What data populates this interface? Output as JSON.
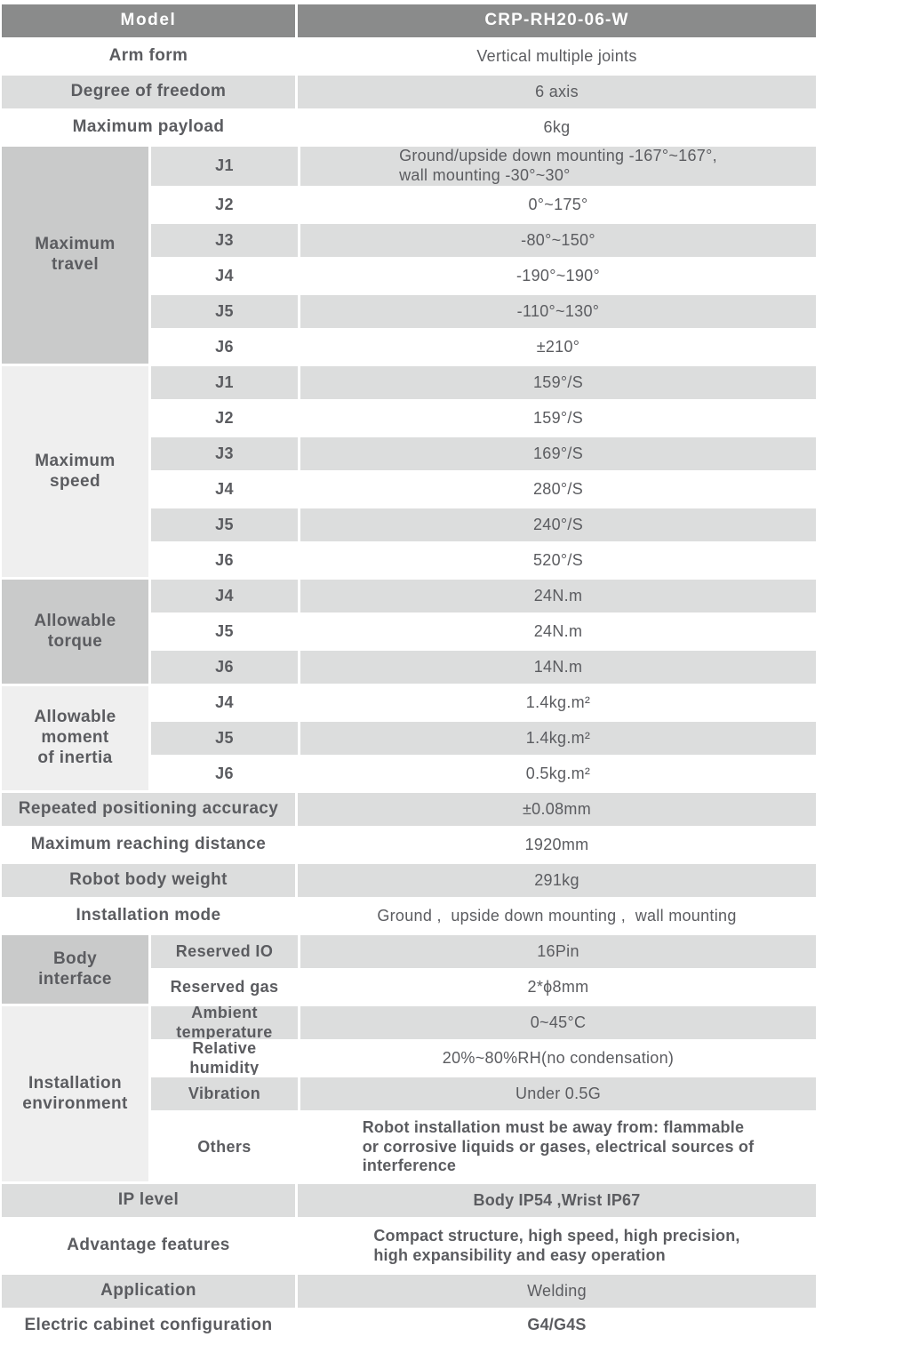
{
  "colors": {
    "header_bg": "#8a8b8b",
    "header_text": "#ffffff",
    "row_gray": "#dcdddd",
    "group_dark": "#c9caca",
    "group_light": "#efefef",
    "text": "#5b5c60"
  },
  "sections": [
    {
      "type": "header",
      "label": "Model",
      "value": "CRP-RH20-06-W"
    },
    {
      "type": "row",
      "shade": "white",
      "label": "Arm form",
      "value": "Vertical multiple joints"
    },
    {
      "type": "row",
      "shade": "gray",
      "label": "Degree of freedom",
      "value": "6 axis"
    },
    {
      "type": "row",
      "shade": "white",
      "label": "Maximum payload",
      "value": "6kg"
    },
    {
      "type": "group",
      "shade": "dark",
      "label": "Maximum\ntravel",
      "rows": [
        {
          "sub": "J1",
          "shade": "gray",
          "align": "left",
          "value": "Ground/upside down mounting -167°~167°,\nwall mounting -30°~30°"
        },
        {
          "sub": "J2",
          "shade": "white",
          "value": "0°~175°"
        },
        {
          "sub": "J3",
          "shade": "gray",
          "value": "-80°~150°"
        },
        {
          "sub": "J4",
          "shade": "white",
          "value": "-190°~190°"
        },
        {
          "sub": "J5",
          "shade": "gray",
          "value": "-110°~130°"
        },
        {
          "sub": "J6",
          "shade": "white",
          "value": "±210°"
        }
      ]
    },
    {
      "type": "group",
      "shade": "light",
      "label": "Maximum\nspeed",
      "rows": [
        {
          "sub": "J1",
          "shade": "gray",
          "value": "159°/S"
        },
        {
          "sub": "J2",
          "shade": "white",
          "value": "159°/S"
        },
        {
          "sub": "J3",
          "shade": "gray",
          "value": "169°/S"
        },
        {
          "sub": "J4",
          "shade": "white",
          "value": "280°/S"
        },
        {
          "sub": "J5",
          "shade": "gray",
          "value": "240°/S"
        },
        {
          "sub": "J6",
          "shade": "white",
          "value": "520°/S"
        }
      ]
    },
    {
      "type": "group",
      "shade": "dark",
      "label": "Allowable\ntorque",
      "rows": [
        {
          "sub": "J4",
          "shade": "gray",
          "value": "24N.m"
        },
        {
          "sub": "J5",
          "shade": "white",
          "value": "24N.m"
        },
        {
          "sub": "J6",
          "shade": "gray",
          "value": "14N.m"
        }
      ]
    },
    {
      "type": "group",
      "shade": "light",
      "label": "Allowable\nmoment\nof inertia",
      "rows": [
        {
          "sub": "J4",
          "shade": "white",
          "value": "1.4kg.m²"
        },
        {
          "sub": "J5",
          "shade": "gray",
          "value": "1.4kg.m²"
        },
        {
          "sub": "J6",
          "shade": "white",
          "value": "0.5kg.m²"
        }
      ]
    },
    {
      "type": "row",
      "shade": "gray",
      "label": "Repeated positioning accuracy",
      "value": "±0.08mm"
    },
    {
      "type": "row",
      "shade": "white",
      "label": "Maximum reaching distance",
      "value": "1920mm"
    },
    {
      "type": "row",
      "shade": "gray",
      "label": "Robot body weight",
      "value": "291kg"
    },
    {
      "type": "row",
      "shade": "white",
      "label": "Installation mode",
      "value": "Ground ,  upside down mounting ,  wall mounting"
    },
    {
      "type": "group",
      "shade": "dark",
      "label": "Body\ninterface",
      "rows": [
        {
          "sub": "Reserved IO",
          "shade": "gray",
          "value": "16Pin"
        },
        {
          "sub": "Reserved gas",
          "shade": "white",
          "value": "2*ϕ8mm"
        }
      ]
    },
    {
      "type": "group",
      "shade": "light",
      "label": "Installation\nenvironment",
      "rows": [
        {
          "sub": "Ambient\ntemperature",
          "shade": "gray",
          "value": "0~45°C"
        },
        {
          "sub": "Relative\nhumidity",
          "shade": "white",
          "value": "20%~80%RH(no condensation)"
        },
        {
          "sub": "Vibration",
          "shade": "gray",
          "value": "Under 0.5G"
        },
        {
          "sub": "Others",
          "shade": "white",
          "align": "left",
          "bold": true,
          "value": "Robot installation must be away from: flammable\nor corrosive liquids or gases, electrical sources of\ninterference"
        }
      ]
    },
    {
      "type": "row",
      "shade": "gray",
      "label": "IP level",
      "value": "Body IP54 ,Wrist IP67",
      "bold": true
    },
    {
      "type": "row",
      "shade": "white",
      "label": "Advantage features",
      "align": "left",
      "bold": true,
      "value": "Compact structure, high speed, high precision,\nhigh expansibility and easy operation"
    },
    {
      "type": "row",
      "shade": "gray",
      "label": "Application",
      "value": "Welding"
    },
    {
      "type": "row",
      "shade": "white",
      "label": "Electric cabinet configuration",
      "value": "G4/G4S",
      "bold": true
    }
  ]
}
